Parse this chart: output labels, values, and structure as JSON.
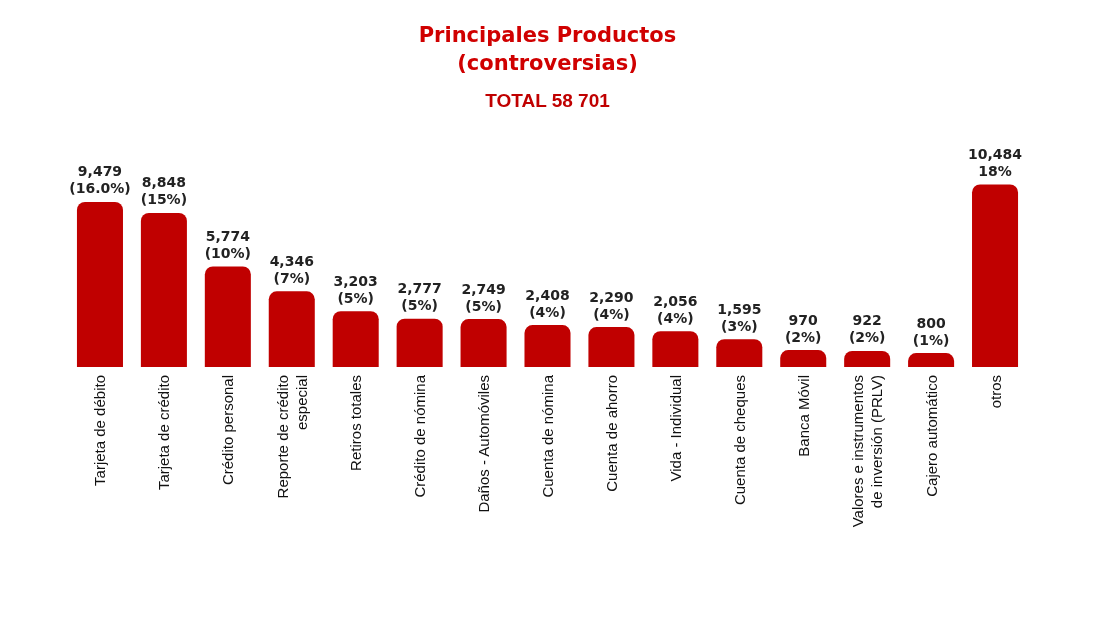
{
  "chart_data": {
    "type": "bar",
    "title": "Principales Productos\n(controversias)",
    "subtitle": "TOTAL 58 701",
    "categories": [
      "Tarjeta de débito",
      "Tarjeta de crédito",
      "Crédito personal",
      "Reporte de crédito\nespecial",
      "Retiros totales",
      "Crédito de nómina",
      "Daños - Automóviles",
      "Cuenta de nómina",
      "Cuenta de ahorro",
      "Vida - Individual",
      "Cuenta de cheques",
      "Banca Móvil",
      "Valores e instrumentos\nde inversión (PRLV)",
      "Cajero automático",
      "otros"
    ],
    "values": [
      9479,
      8848,
      5774,
      4346,
      3203,
      2777,
      2749,
      2408,
      2290,
      2056,
      1595,
      970,
      922,
      800,
      10484
    ],
    "value_labels": [
      "9,479\n(16.0%)",
      "8,848\n(15%)",
      "5,774\n(10%)",
      "4,346\n(7%)",
      "3,203\n(5%)",
      "2,777\n(5%)",
      "2,749\n(5%)",
      "2,408\n(4%)",
      "2,290\n(4%)",
      "2,056\n(4%)",
      "1,595\n(3%)",
      "970\n(2%)",
      "922\n(2%)",
      "800\n(1%)",
      "10,484\n18%"
    ],
    "color": "#c00000"
  }
}
